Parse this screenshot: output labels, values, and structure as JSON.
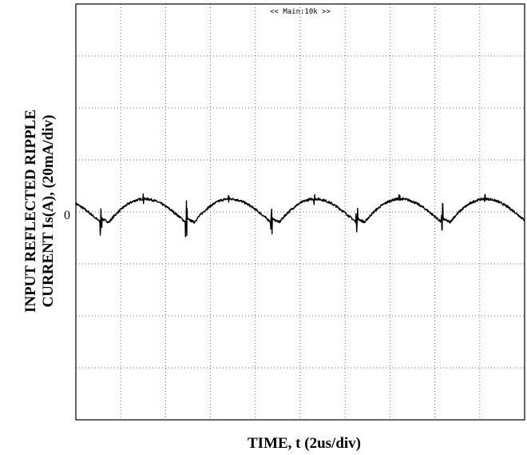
{
  "chart_data": {
    "type": "line",
    "title": "<< Main:10k >>",
    "xlabel": "TIME, t (2us/div)",
    "ylabel_line1": "INPUT REFLECTED RIPPLE",
    "ylabel_line2": "CURRENT Is(A), (20mA/div)",
    "zero_label": "0",
    "x_divisions": 10,
    "y_divisions": 8,
    "xlim_us": [
      0,
      20
    ],
    "ylim_mA": [
      -80,
      80
    ],
    "grid": true,
    "series": [
      {
        "name": "",
        "color": "#000000",
        "period_us": 3.8,
        "first_spike_us": 1.1,
        "amplitude_low_mA": -4,
        "amplitude_high_mA": 5,
        "spike_mA": 7
      }
    ]
  }
}
